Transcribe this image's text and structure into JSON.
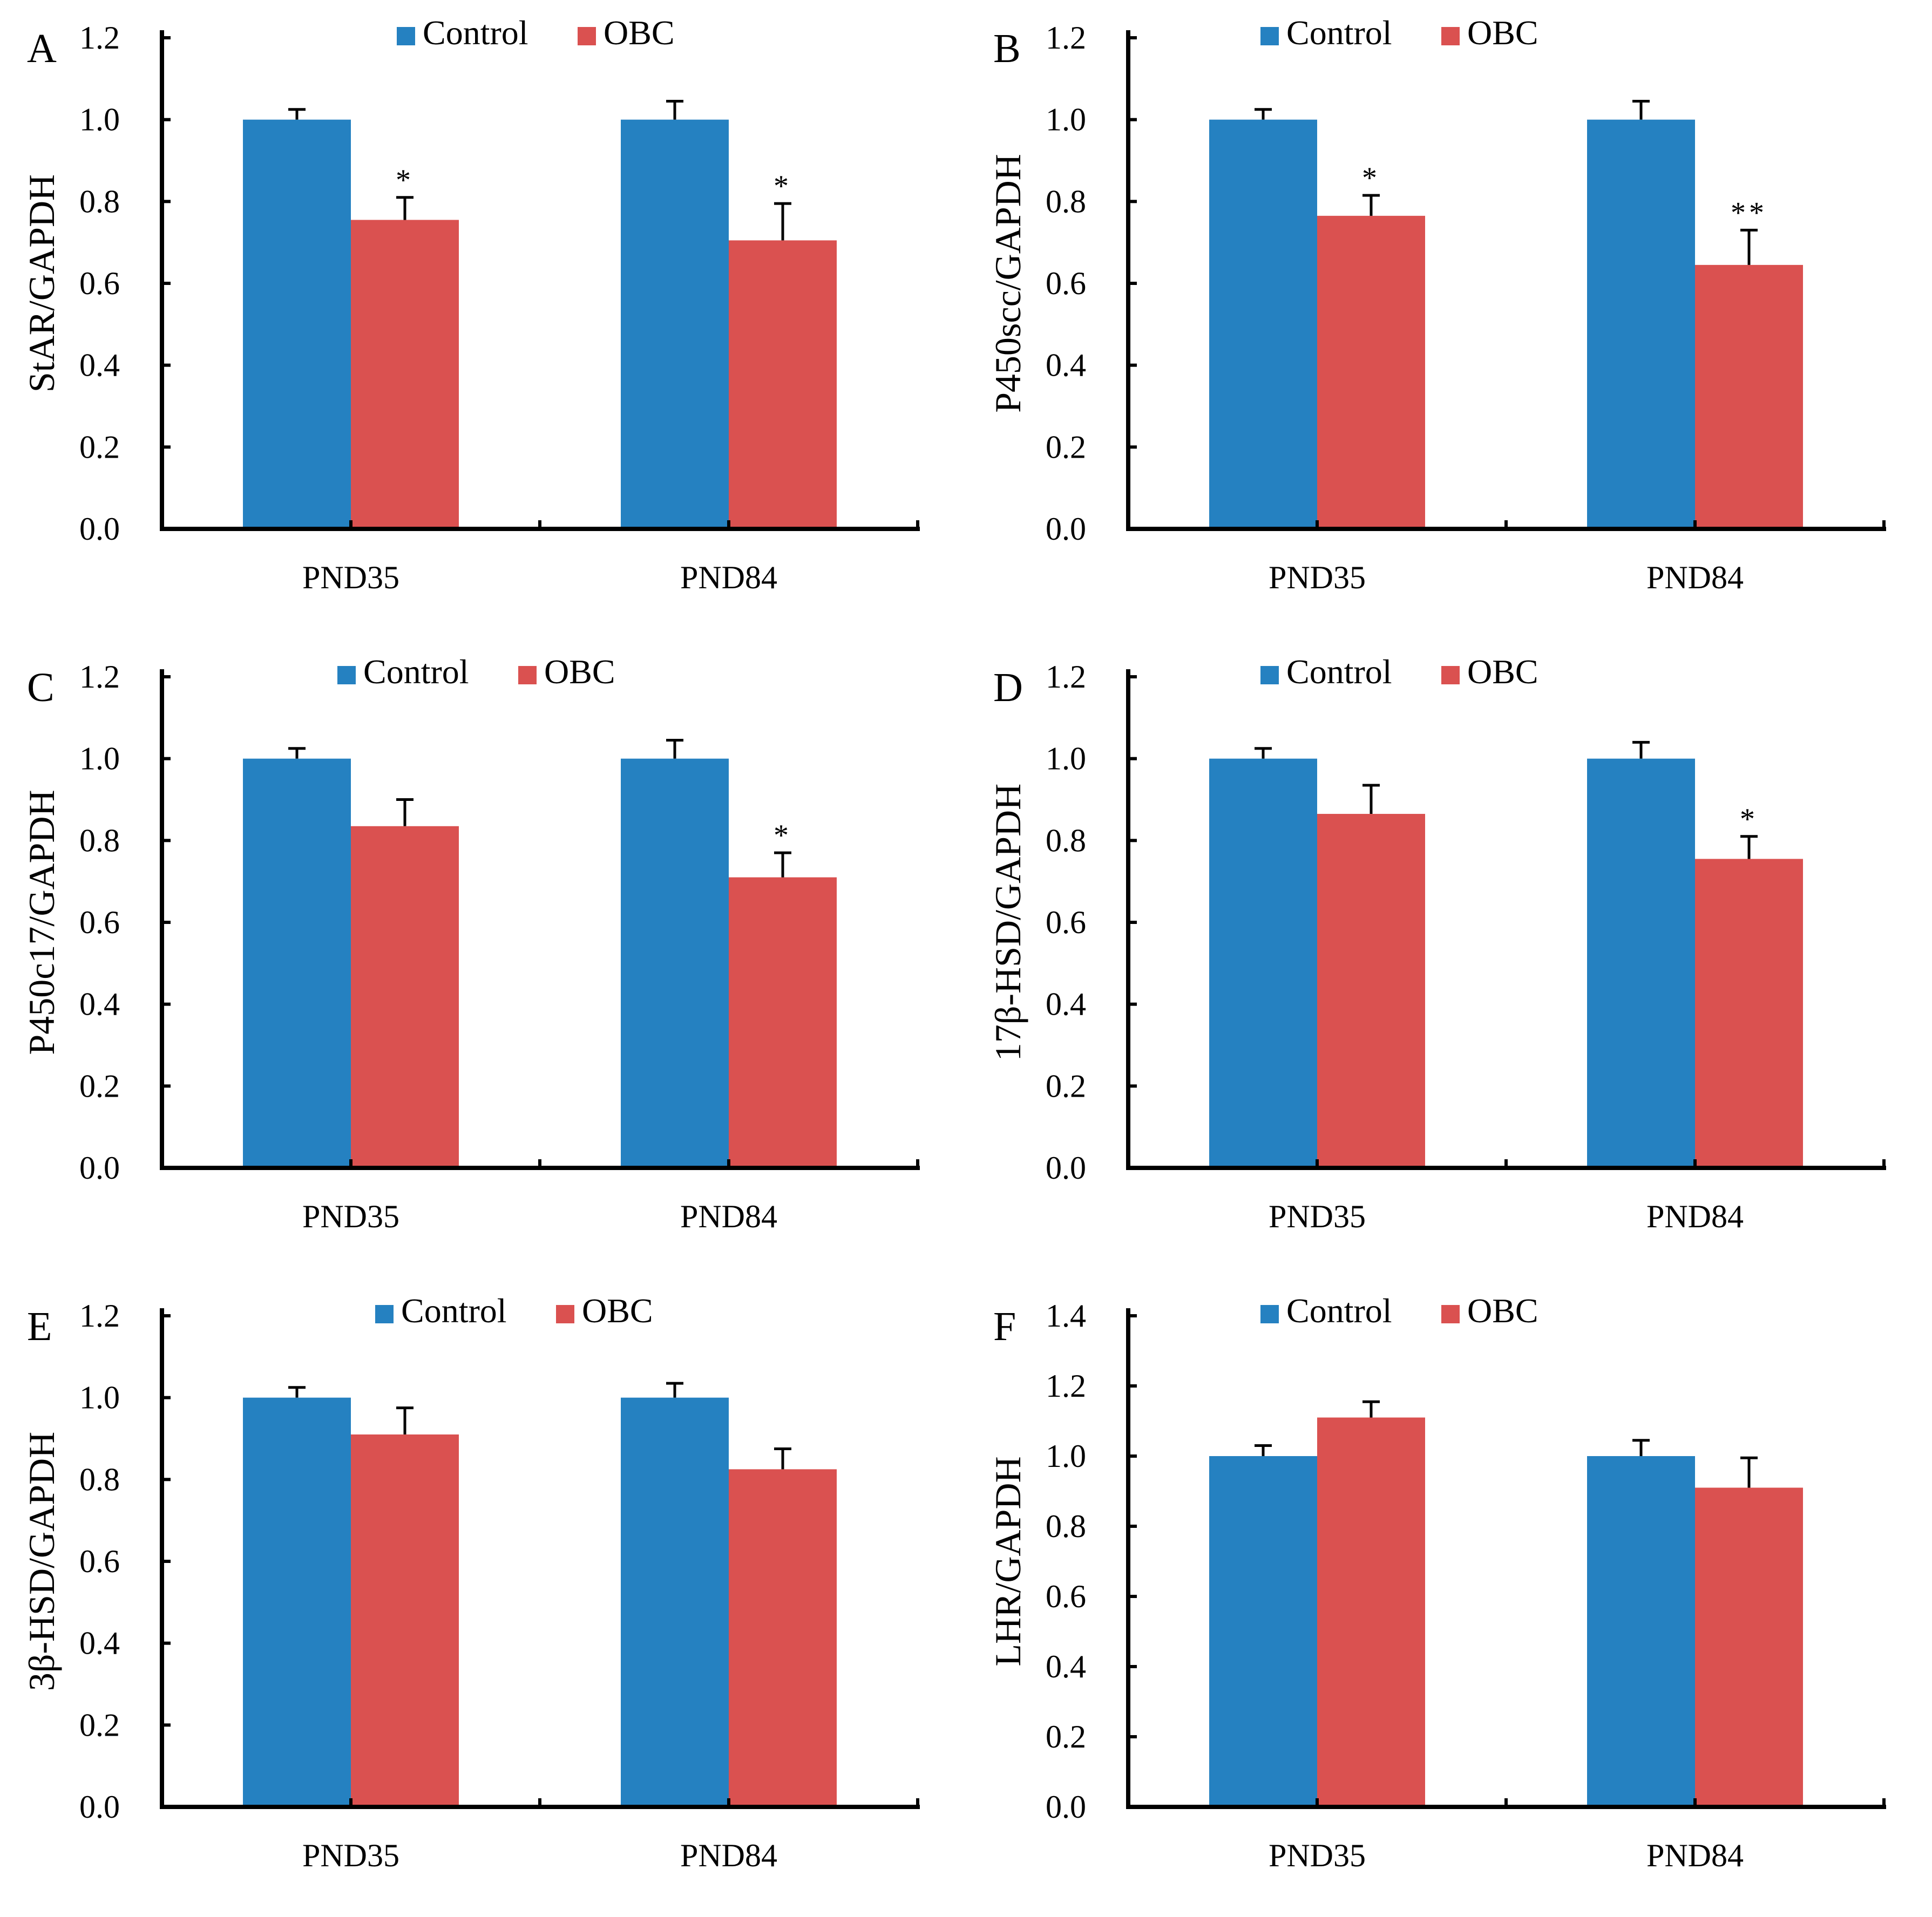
{
  "colors": {
    "control": "#2581c1",
    "obc": "#da5150",
    "axis": "#000000"
  },
  "legend": {
    "control": "Control",
    "obc": "OBC"
  },
  "chart_data": [
    {
      "type": "bar",
      "panel_label": "A",
      "title": "",
      "xlabel": "",
      "ylabel": "StAR/GAPDH",
      "ylim": [
        0,
        1.2
      ],
      "yticks": [
        "0.0",
        "0.2",
        "0.4",
        "0.6",
        "0.8",
        "1.0",
        "1.2"
      ],
      "categories": [
        "PND35",
        "PND84"
      ],
      "series": [
        {
          "name": "Control",
          "values": [
            1.0,
            1.0
          ],
          "errors": [
            0.025,
            0.045
          ],
          "sig": [
            "",
            ""
          ]
        },
        {
          "name": "OBC",
          "values": [
            0.755,
            0.705
          ],
          "errors": [
            0.055,
            0.09
          ],
          "sig": [
            "*",
            "*"
          ]
        }
      ]
    },
    {
      "type": "bar",
      "panel_label": "B",
      "title": "",
      "xlabel": "",
      "ylabel": "P450scc/GAPDH",
      "ylim": [
        0,
        1.2
      ],
      "yticks": [
        "0.0",
        "0.2",
        "0.4",
        "0.6",
        "0.8",
        "1.0",
        "1.2"
      ],
      "categories": [
        "PND35",
        "PND84"
      ],
      "series": [
        {
          "name": "Control",
          "values": [
            1.0,
            1.0
          ],
          "errors": [
            0.025,
            0.045
          ],
          "sig": [
            "",
            ""
          ]
        },
        {
          "name": "OBC",
          "values": [
            0.765,
            0.645
          ],
          "errors": [
            0.05,
            0.085
          ],
          "sig": [
            "*",
            "**"
          ]
        }
      ]
    },
    {
      "type": "bar",
      "panel_label": "C",
      "title": "",
      "xlabel": "",
      "ylabel": "P450c17/GAPDH",
      "ylim": [
        0,
        1.2
      ],
      "yticks": [
        "0.0",
        "0.2",
        "0.4",
        "0.6",
        "0.8",
        "1.0",
        "1.2"
      ],
      "categories": [
        "PND35",
        "PND84"
      ],
      "series": [
        {
          "name": "Control",
          "values": [
            1.0,
            1.0
          ],
          "errors": [
            0.025,
            0.045
          ],
          "sig": [
            "",
            ""
          ]
        },
        {
          "name": "OBC",
          "values": [
            0.835,
            0.71
          ],
          "errors": [
            0.065,
            0.06
          ],
          "sig": [
            "",
            "*"
          ]
        }
      ]
    },
    {
      "type": "bar",
      "panel_label": "D",
      "title": "",
      "xlabel": "",
      "ylabel": "17β-HSD/GAPDH",
      "ylim": [
        0,
        1.2
      ],
      "yticks": [
        "0.0",
        "0.2",
        "0.4",
        "0.6",
        "0.8",
        "1.0",
        "1.2"
      ],
      "categories": [
        "PND35",
        "PND84"
      ],
      "series": [
        {
          "name": "Control",
          "values": [
            1.0,
            1.0
          ],
          "errors": [
            0.025,
            0.04
          ],
          "sig": [
            "",
            ""
          ]
        },
        {
          "name": "OBC",
          "values": [
            0.865,
            0.755
          ],
          "errors": [
            0.07,
            0.055
          ],
          "sig": [
            "",
            "*"
          ]
        }
      ]
    },
    {
      "type": "bar",
      "panel_label": "E",
      "title": "",
      "xlabel": "",
      "ylabel": "3β-HSD/GAPDH",
      "ylim": [
        0,
        1.2
      ],
      "yticks": [
        "0.0",
        "0.2",
        "0.4",
        "0.6",
        "0.8",
        "1.0",
        "1.2"
      ],
      "categories": [
        "PND35",
        "PND84"
      ],
      "series": [
        {
          "name": "Control",
          "values": [
            1.0,
            1.0
          ],
          "errors": [
            0.025,
            0.035
          ],
          "sig": [
            "",
            ""
          ]
        },
        {
          "name": "OBC",
          "values": [
            0.91,
            0.825
          ],
          "errors": [
            0.065,
            0.05
          ],
          "sig": [
            "",
            ""
          ]
        }
      ]
    },
    {
      "type": "bar",
      "panel_label": "F",
      "title": "",
      "xlabel": "",
      "ylabel": "LHR/GAPDH",
      "ylim": [
        0,
        1.4
      ],
      "yticks": [
        "0.0",
        "0.2",
        "0.4",
        "0.6",
        "0.8",
        "1.0",
        "1.2",
        "1.4"
      ],
      "categories": [
        "PND35",
        "PND84"
      ],
      "series": [
        {
          "name": "Control",
          "values": [
            1.0,
            1.0
          ],
          "errors": [
            0.03,
            0.045
          ],
          "sig": [
            "",
            ""
          ]
        },
        {
          "name": "OBC",
          "values": [
            1.11,
            0.91
          ],
          "errors": [
            0.045,
            0.085
          ],
          "sig": [
            "",
            ""
          ]
        }
      ]
    }
  ]
}
